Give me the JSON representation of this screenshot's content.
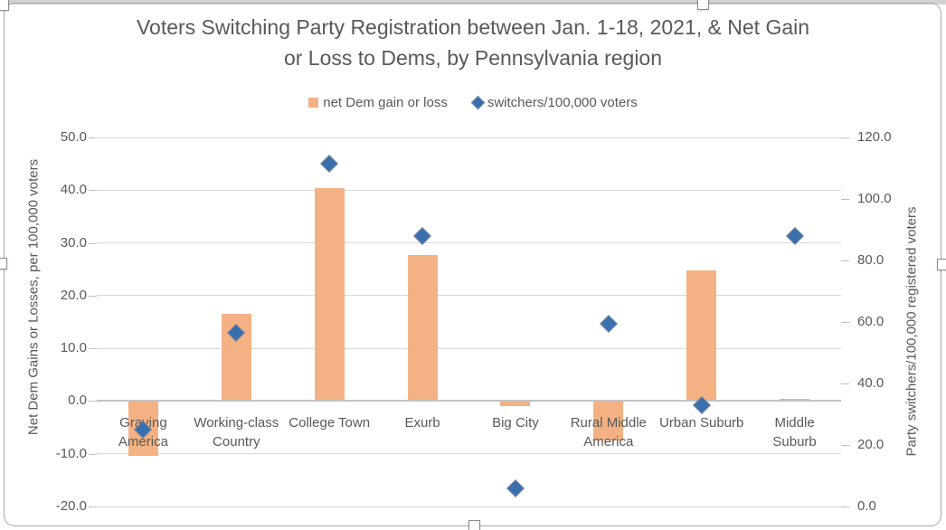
{
  "chart_data": {
    "type": "combo-bar-scatter",
    "title_line1": "Voters Switching Party Registration between Jan. 1-18, 2021, & Net Gain",
    "title_line2": "or Loss to Dems, by Pennsylvania region",
    "categories": [
      "Graying\nAmerica",
      "Working-class\nCountry",
      "College Town",
      "Exurb",
      "Big City",
      "Rural Middle\nAmerica",
      "Urban Suburb",
      "Middle\nSuburb"
    ],
    "series": [
      {
        "name": "net Dem gain or loss",
        "type": "bar",
        "axis": "left",
        "values": [
          -10.4,
          16.6,
          40.4,
          27.7,
          -1.0,
          -7.5,
          24.8,
          0.4
        ]
      },
      {
        "name": "switchers/100,000 voters",
        "type": "scatter",
        "marker": "diamond",
        "axis": "right",
        "values": [
          25.0,
          56.5,
          111.5,
          88.0,
          6.0,
          59.5,
          33.0,
          88.0
        ]
      }
    ],
    "left_axis": {
      "title": "Net Dem Gains or Losses, per 100,000 voters",
      "min": -20,
      "max": 50,
      "ticks": [
        "50.0",
        "40.0",
        "30.0",
        "20.0",
        "10.0",
        "0.0",
        "-10.0",
        "-20.0"
      ]
    },
    "right_axis": {
      "title": "Party switchers/100,000 registered voters",
      "min": 0,
      "max": 120,
      "ticks": [
        "120.0",
        "100.0",
        "80.0",
        "60.0",
        "40.0",
        "20.0",
        "0.0"
      ]
    },
    "grid": true,
    "legend_position": "top"
  },
  "colors": {
    "bar": "#f4b183",
    "marker_fill": "#3a6fad",
    "marker_border": "#76839a",
    "gridline": "#d9d9d9",
    "zero_line": "#c2c2c2",
    "text": "#595959",
    "chart_border": "#a9a9a9"
  }
}
